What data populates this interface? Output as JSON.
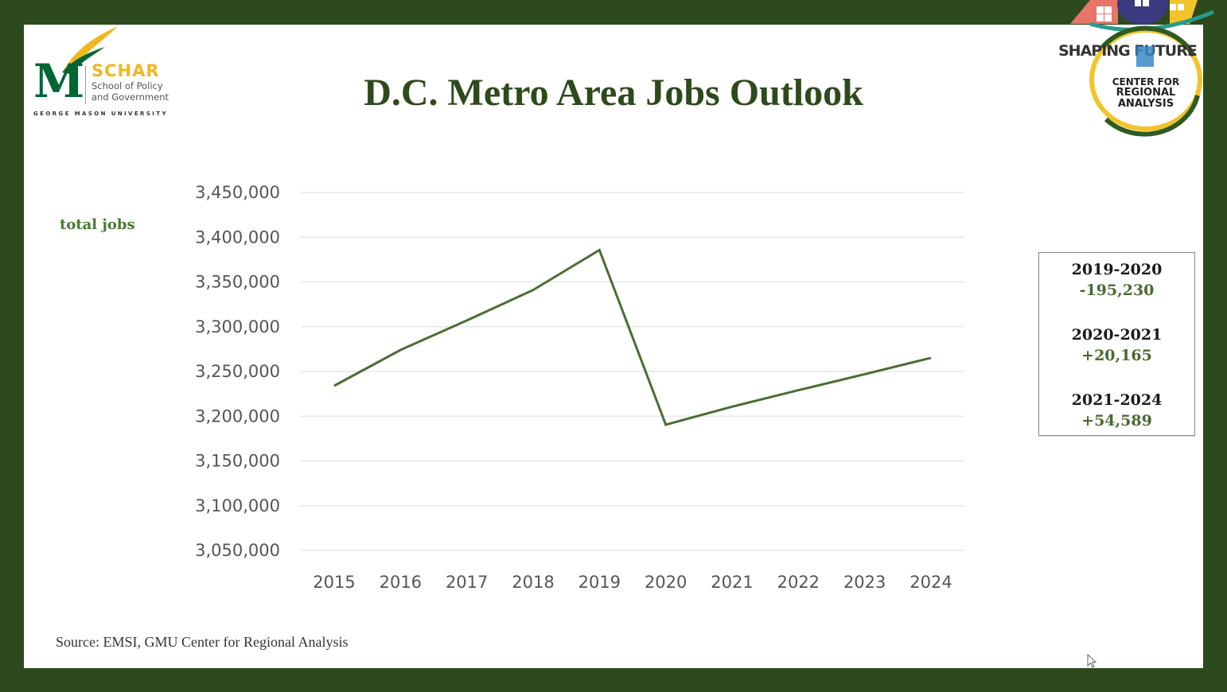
{
  "slide": {
    "title": "D.C. Metro Area Jobs Outlook",
    "y_axis_label": "total jobs",
    "source": "Source: EMSI, GMU Center for Regional Analysis"
  },
  "logos": {
    "left": {
      "letter": "M",
      "name": "SCHAR",
      "subtitle": "School of Policy\nand Government",
      "university": "GEORGE MASON UNIVERSITY"
    },
    "right": {
      "banner": "SHAPING FUTURE",
      "line1": "CENTER FOR",
      "line2": "REGIONAL",
      "line3": "ANALYSIS"
    }
  },
  "changes": [
    {
      "period": "2019-2020",
      "value": "-195,230"
    },
    {
      "period": "2020-2021",
      "value": "+20,165"
    },
    {
      "period": "2021-2024",
      "value": "+54,589"
    }
  ],
  "colors": {
    "frame": "#2c4a1e",
    "title": "#2e4a1c",
    "line": "#4a6e33",
    "value_green": "#4a6a30",
    "schar_gold": "#f2b61f",
    "gmu_green": "#006633"
  },
  "chart_data": {
    "type": "line",
    "title": "D.C. Metro Area Jobs Outlook",
    "xlabel": "",
    "ylabel": "total jobs",
    "x": [
      "2015",
      "2016",
      "2017",
      "2018",
      "2019",
      "2020",
      "2021",
      "2022",
      "2023",
      "2024"
    ],
    "series": [
      {
        "name": "total jobs",
        "values": [
          3234000,
          3274000,
          3307000,
          3341000,
          3385700,
          3190500,
          3210600,
          3229000,
          3247000,
          3265200
        ]
      }
    ],
    "y_ticks": [
      "3,450,000",
      "3,400,000",
      "3,350,000",
      "3,300,000",
      "3,250,000",
      "3,200,000",
      "3,150,000",
      "3,100,000",
      "3,050,000"
    ],
    "ylim": [
      3050000,
      3450000
    ],
    "grid": true,
    "legend": "none",
    "annotations": [
      "2019-2020: -195,230",
      "2020-2021: +20,165",
      "2021-2024: +54,589"
    ]
  }
}
